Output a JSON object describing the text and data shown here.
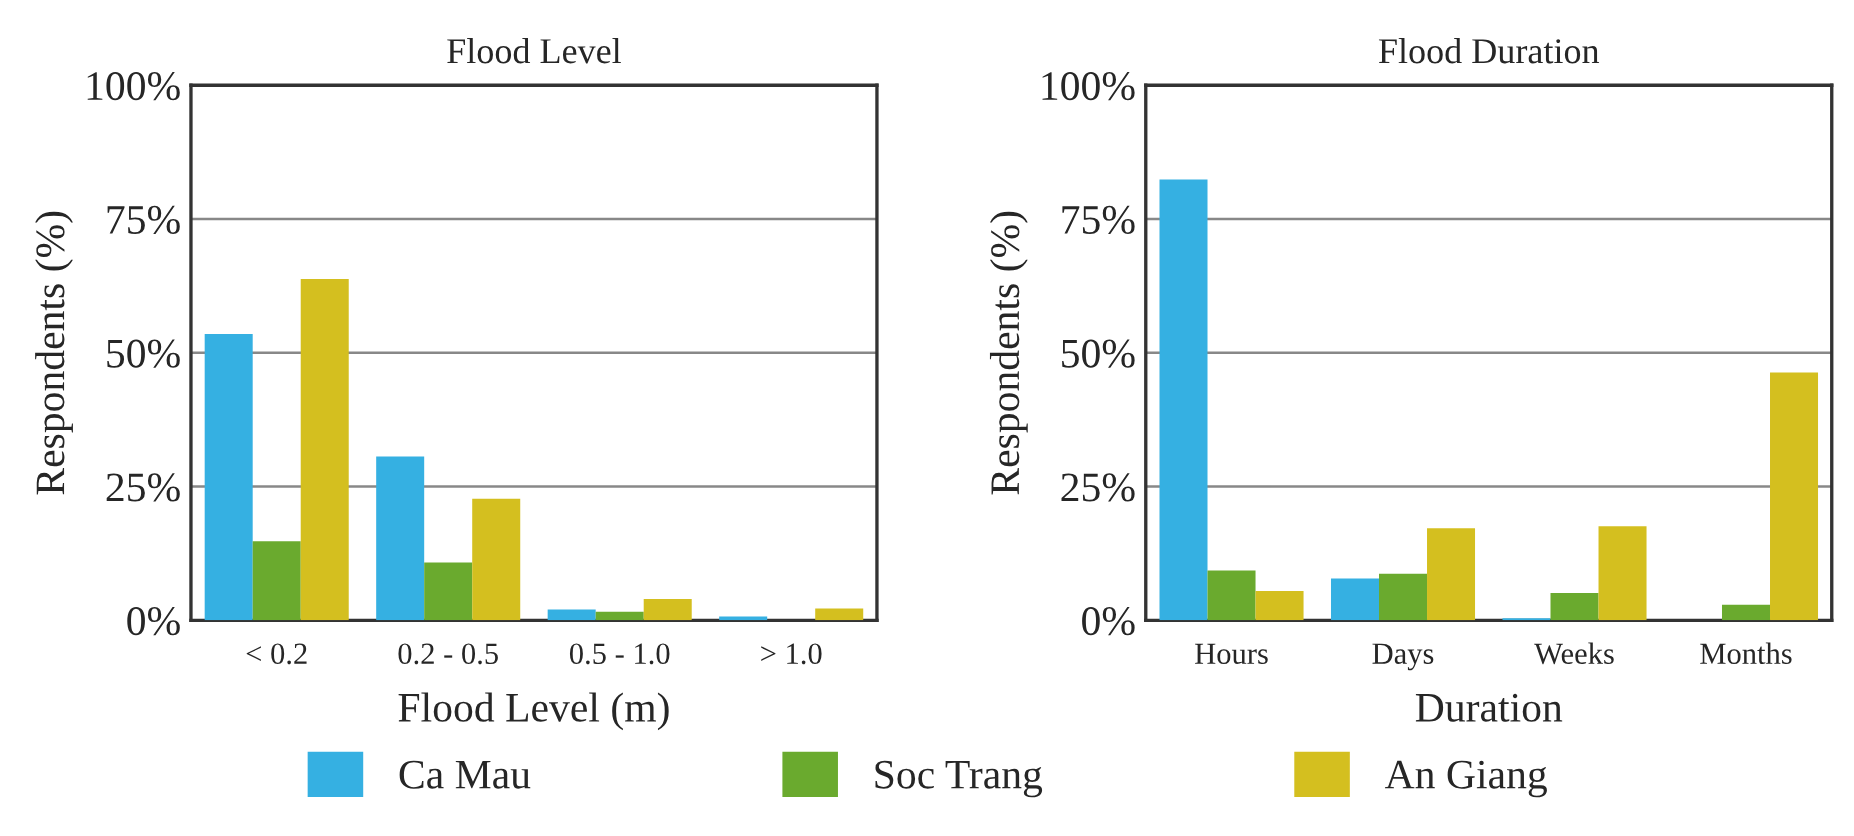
{
  "chart_data": [
    {
      "type": "bar",
      "title": "Flood Level",
      "xlabel": "Flood Level (m)",
      "ylabel": "Respondents (%)",
      "categories": [
        "< 0.2",
        "0.2 - 0.5",
        "0.5 - 1.0",
        "> 1.0"
      ],
      "series": [
        {
          "color": "#35b0e2",
          "values": [
            53.5,
            30.6,
            2.0,
            0.7
          ]
        },
        {
          "color": "#6aaa2e",
          "values": [
            14.8,
            10.8,
            1.6,
            0
          ]
        },
        {
          "color": "#d4bf1f",
          "values": [
            63.8,
            22.7,
            4.0,
            2.2
          ]
        }
      ],
      "ylim": [
        0,
        100
      ],
      "yticks": [
        {
          "value": 0,
          "label": "0%"
        },
        {
          "value": 25,
          "label": "25%"
        },
        {
          "value": 50,
          "label": "50%"
        },
        {
          "value": 75,
          "label": "75%"
        },
        {
          "value": 100,
          "label": "100%"
        }
      ],
      "grid": "y"
    },
    {
      "type": "bar",
      "title": "Flood Duration",
      "xlabel": "Duration",
      "ylabel": "Respondents (%)",
      "categories": [
        "Hours",
        "Days",
        "Weeks",
        "Months"
      ],
      "series": [
        {
          "name": "Ca Mau",
          "color": "#35b0e2",
          "values": [
            82.4,
            7.8,
            0.4,
            0
          ]
        },
        {
          "name": "Soc Trang",
          "color": "#6aaa2e",
          "values": [
            9.3,
            8.7,
            5.1,
            2.9
          ]
        },
        {
          "name": "An Giang",
          "color": "#d4bf1f",
          "values": [
            5.5,
            17.2,
            17.6,
            46.3
          ]
        }
      ],
      "ylim": [
        0,
        100
      ],
      "yticks": [
        {
          "value": 0,
          "label": "0%"
        },
        {
          "value": 25,
          "label": "25%"
        },
        {
          "value": 50,
          "label": "50%"
        },
        {
          "value": 75,
          "label": "75%"
        },
        {
          "value": 100,
          "label": "100%"
        }
      ],
      "grid": "y",
      "legend": "bottom"
    }
  ]
}
